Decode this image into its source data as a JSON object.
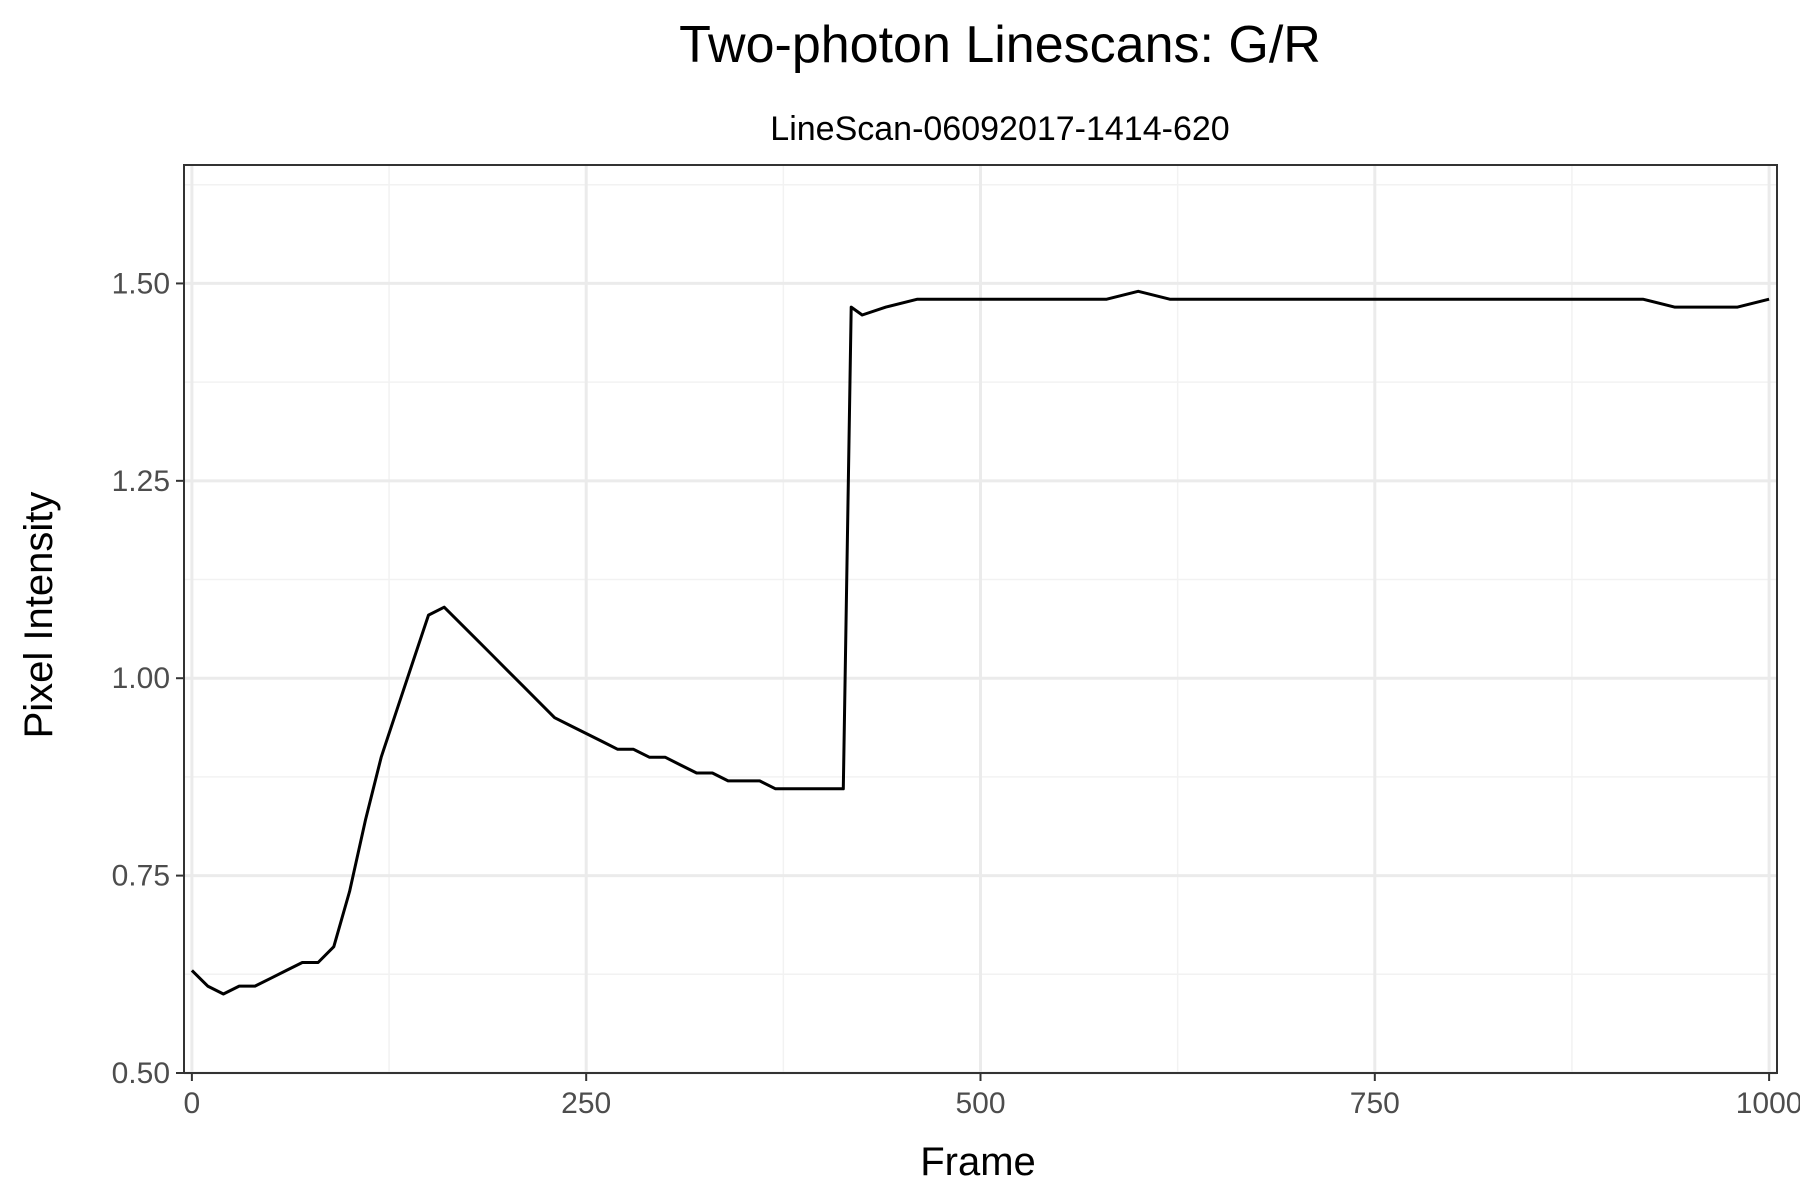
{
  "chart_data": {
    "type": "line",
    "title": "Two-photon Linescans: G/R",
    "subtitle": "LineScan-06092017-1414-620",
    "xlabel": "Frame",
    "ylabel": "Pixel Intensity",
    "xlim": [
      -5,
      1005
    ],
    "ylim": [
      0.5,
      1.65
    ],
    "x_ticks": [
      0,
      250,
      500,
      750,
      1000
    ],
    "x_tick_labels": [
      "0",
      "250",
      "500",
      "750",
      "1000"
    ],
    "y_ticks": [
      0.5,
      0.75,
      1.0,
      1.25,
      1.5
    ],
    "y_tick_labels": [
      "0.50",
      "0.75",
      "1.00",
      "1.25",
      "1.50"
    ],
    "grid": true,
    "legend": "none",
    "line_color": "#000000",
    "series": [
      {
        "x": [
          0,
          10,
          20,
          30,
          40,
          50,
          60,
          70,
          80,
          90,
          100,
          110,
          120,
          130,
          140,
          150,
          160,
          170,
          180,
          190,
          200,
          210,
          220,
          230,
          240,
          250,
          260,
          270,
          280,
          290,
          300,
          310,
          320,
          330,
          340,
          350,
          360,
          370,
          380,
          390,
          400,
          408,
          413,
          418,
          425,
          440,
          460,
          480,
          500,
          520,
          540,
          560,
          580,
          600,
          620,
          640,
          660,
          680,
          700,
          720,
          740,
          760,
          780,
          800,
          820,
          840,
          860,
          880,
          900,
          920,
          940,
          960,
          980,
          1000
        ],
        "values": [
          0.63,
          0.61,
          0.6,
          0.61,
          0.61,
          0.62,
          0.63,
          0.64,
          0.64,
          0.66,
          0.73,
          0.82,
          0.9,
          0.96,
          1.02,
          1.08,
          1.09,
          1.07,
          1.05,
          1.03,
          1.01,
          0.99,
          0.97,
          0.95,
          0.94,
          0.93,
          0.92,
          0.91,
          0.91,
          0.9,
          0.9,
          0.89,
          0.88,
          0.88,
          0.87,
          0.87,
          0.87,
          0.86,
          0.86,
          0.86,
          0.86,
          0.86,
          0.86,
          1.47,
          1.46,
          1.47,
          1.48,
          1.48,
          1.48,
          1.48,
          1.48,
          1.48,
          1.48,
          1.49,
          1.48,
          1.48,
          1.48,
          1.48,
          1.48,
          1.48,
          1.48,
          1.48,
          1.48,
          1.48,
          1.48,
          1.48,
          1.48,
          1.48,
          1.48,
          1.48,
          1.47,
          1.47,
          1.47,
          1.48
        ]
      }
    ]
  }
}
